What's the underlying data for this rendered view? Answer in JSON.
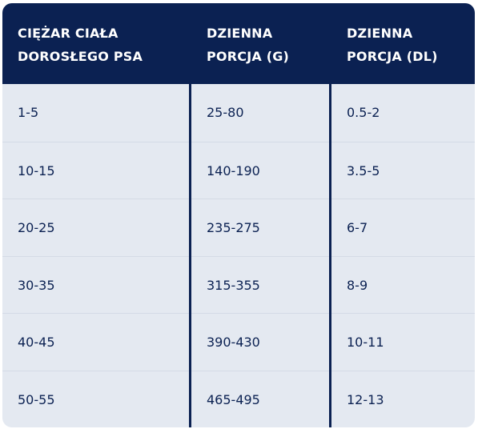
{
  "table": {
    "headers": [
      [
        "CIĘŻAR CIAŁA",
        "DOROSŁEGO PSA"
      ],
      [
        "DZIENNA",
        "PORCJA (G)"
      ],
      [
        "DZIENNA",
        "PORCJA (DL)"
      ]
    ],
    "rows": [
      [
        "1-5",
        "25-80",
        "0.5-2"
      ],
      [
        "10-15",
        "140-190",
        "3.5-5"
      ],
      [
        "20-25",
        "235-275",
        "6-7"
      ],
      [
        "30-35",
        "315-355",
        "8-9"
      ],
      [
        "40-45",
        "390-430",
        "10-11"
      ],
      [
        "50-55",
        "465-495",
        "12-13"
      ]
    ],
    "colors": {
      "header_background": "#0b2152",
      "header_text": "#ffffff",
      "body_background": "#e4e9f1",
      "body_text": "#0b2152",
      "divider": "#0b2152"
    }
  }
}
